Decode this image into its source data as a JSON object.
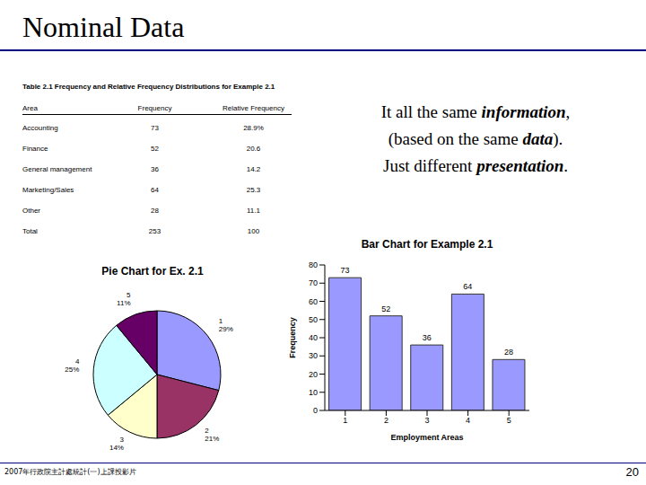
{
  "title": "Nominal Data",
  "table": {
    "title": "Table 2.1 Frequency and Relative Frequency Distributions for Example 2.1",
    "header": [
      "Area",
      "Frequency",
      "Relative Frequency"
    ],
    "rows": [
      [
        "Accounting",
        "73",
        "28.9%"
      ],
      [
        "Finance",
        "52",
        "20.6"
      ],
      [
        "General management",
        "36",
        "14.2"
      ],
      [
        "Marketing/Sales",
        "64",
        "25.3"
      ],
      [
        "Other",
        "28",
        "11.1"
      ],
      [
        "Total",
        "253",
        "100"
      ]
    ]
  },
  "note": {
    "lines": [
      [
        {
          "text": "It all the same "
        },
        {
          "text": "information",
          "emphasis": true
        },
        {
          "text": ","
        }
      ],
      [
        {
          "text": "(based on the same "
        },
        {
          "text": "data",
          "emphasis": true
        },
        {
          "text": ")."
        }
      ],
      [
        {
          "text": "Just different "
        },
        {
          "text": "presentation",
          "emphasis": true
        },
        {
          "text": "."
        }
      ]
    ]
  },
  "chart_data": [
    {
      "type": "pie",
      "title": "Pie Chart for Ex. 2.1",
      "categories": [
        "1",
        "2",
        "3",
        "4",
        "5"
      ],
      "values": [
        29,
        21,
        14,
        25,
        11
      ],
      "value_labels": [
        "29%",
        "21%",
        "14%",
        "25%",
        "11%"
      ],
      "colors": [
        "#9999ff",
        "#993366",
        "#ffffcc",
        "#ccffff",
        "#660066"
      ],
      "data_labels": true
    },
    {
      "type": "bar",
      "title": "Bar Chart for Example 2.1",
      "x_label": "Employment Areas",
      "y_label": "Frequency",
      "categories": [
        "1",
        "2",
        "3",
        "4",
        "5"
      ],
      "values": [
        73,
        52,
        36,
        64,
        28
      ],
      "color": "#9999ff",
      "ylim": [
        0,
        80
      ],
      "yticks": [
        0,
        10,
        20,
        30,
        40,
        50,
        60,
        70,
        80
      ],
      "data_labels": true,
      "grid": false
    }
  ],
  "footer": "2007年行政院主計處統計(一)上課投影片",
  "page_number": "20"
}
